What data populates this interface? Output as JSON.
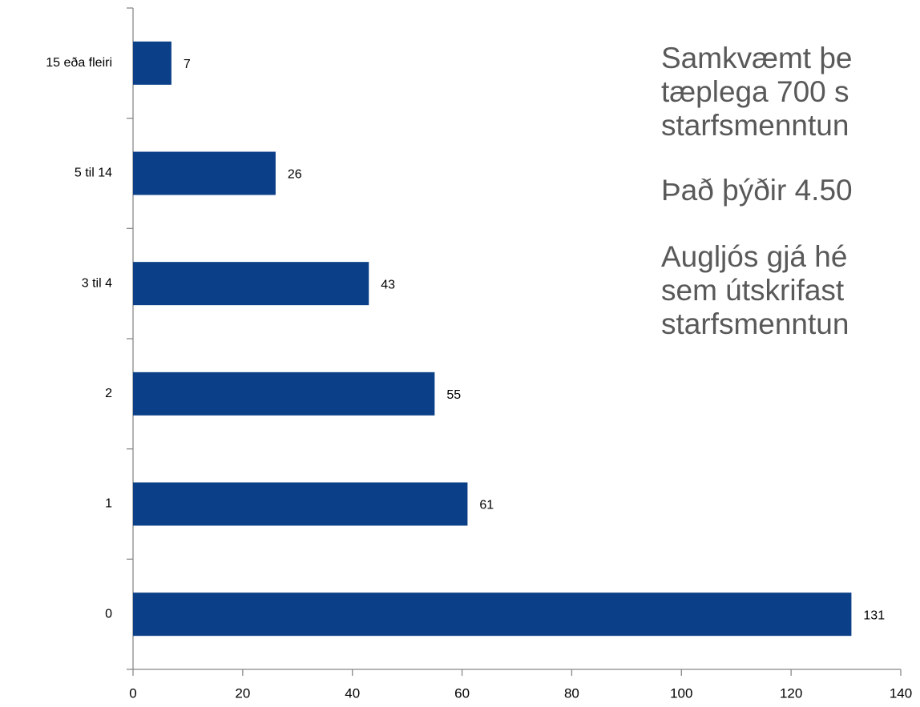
{
  "chart_data": {
    "type": "barh",
    "categories": [
      "15 eða fleiri",
      "5 til 14",
      "3 til 4",
      "2",
      "1",
      "0"
    ],
    "values": [
      7,
      26,
      43,
      55,
      61,
      131
    ],
    "color": "#0b3f87",
    "xlim": [
      0,
      140
    ],
    "xticks": [
      0,
      20,
      40,
      60,
      80,
      100,
      120,
      140
    ],
    "grid": false,
    "annotations": [
      [
        "Samkvæmt þe",
        "tæplega 700 s",
        "starfsmenntun"
      ],
      [
        "Það þýðir 4.50"
      ],
      [
        "Augljós gjá hé",
        "sem útskrifast",
        "starfsmenntun"
      ]
    ]
  }
}
